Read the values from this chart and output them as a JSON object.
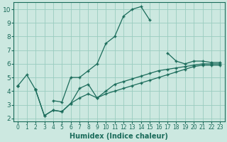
{
  "title": "",
  "xlabel": "Humidex (Indice chaleur)",
  "ylabel": "",
  "bg_color": "#cce8e0",
  "grid_color": "#99ccbf",
  "line_color": "#1a6b5a",
  "marker": "+",
  "x_values": [
    0,
    1,
    2,
    3,
    4,
    5,
    6,
    7,
    8,
    9,
    10,
    11,
    12,
    13,
    14,
    15,
    16,
    17,
    18,
    19,
    20,
    21,
    22,
    23
  ],
  "line1": [
    4.4,
    5.2,
    4.1,
    null,
    3.3,
    3.2,
    5.0,
    5.0,
    5.5,
    6.0,
    7.5,
    8.0,
    9.5,
    10.0,
    10.2,
    9.2,
    null,
    6.8,
    6.2,
    6.0,
    6.2,
    6.2,
    6.1,
    6.1
  ],
  "line2": [
    4.4,
    null,
    4.1,
    2.2,
    2.6,
    2.5,
    3.1,
    4.2,
    4.5,
    3.5,
    4.0,
    4.5,
    4.7,
    4.9,
    5.1,
    5.3,
    5.5,
    5.6,
    5.7,
    5.8,
    5.9,
    6.0,
    6.0,
    6.0
  ],
  "line3": [
    4.4,
    null,
    4.1,
    2.2,
    2.6,
    2.5,
    3.1,
    3.5,
    3.8,
    3.5,
    3.8,
    4.0,
    4.2,
    4.4,
    4.6,
    4.8,
    5.0,
    5.2,
    5.4,
    5.6,
    5.8,
    5.9,
    5.9,
    5.9
  ],
  "ylim": [
    1.8,
    10.5
  ],
  "xlim": [
    -0.5,
    23.5
  ],
  "yticks": [
    2,
    3,
    4,
    5,
    6,
    7,
    8,
    9,
    10
  ],
  "xticks": [
    0,
    1,
    2,
    3,
    4,
    5,
    6,
    7,
    8,
    9,
    10,
    11,
    12,
    13,
    14,
    15,
    16,
    17,
    18,
    19,
    20,
    21,
    22,
    23
  ]
}
